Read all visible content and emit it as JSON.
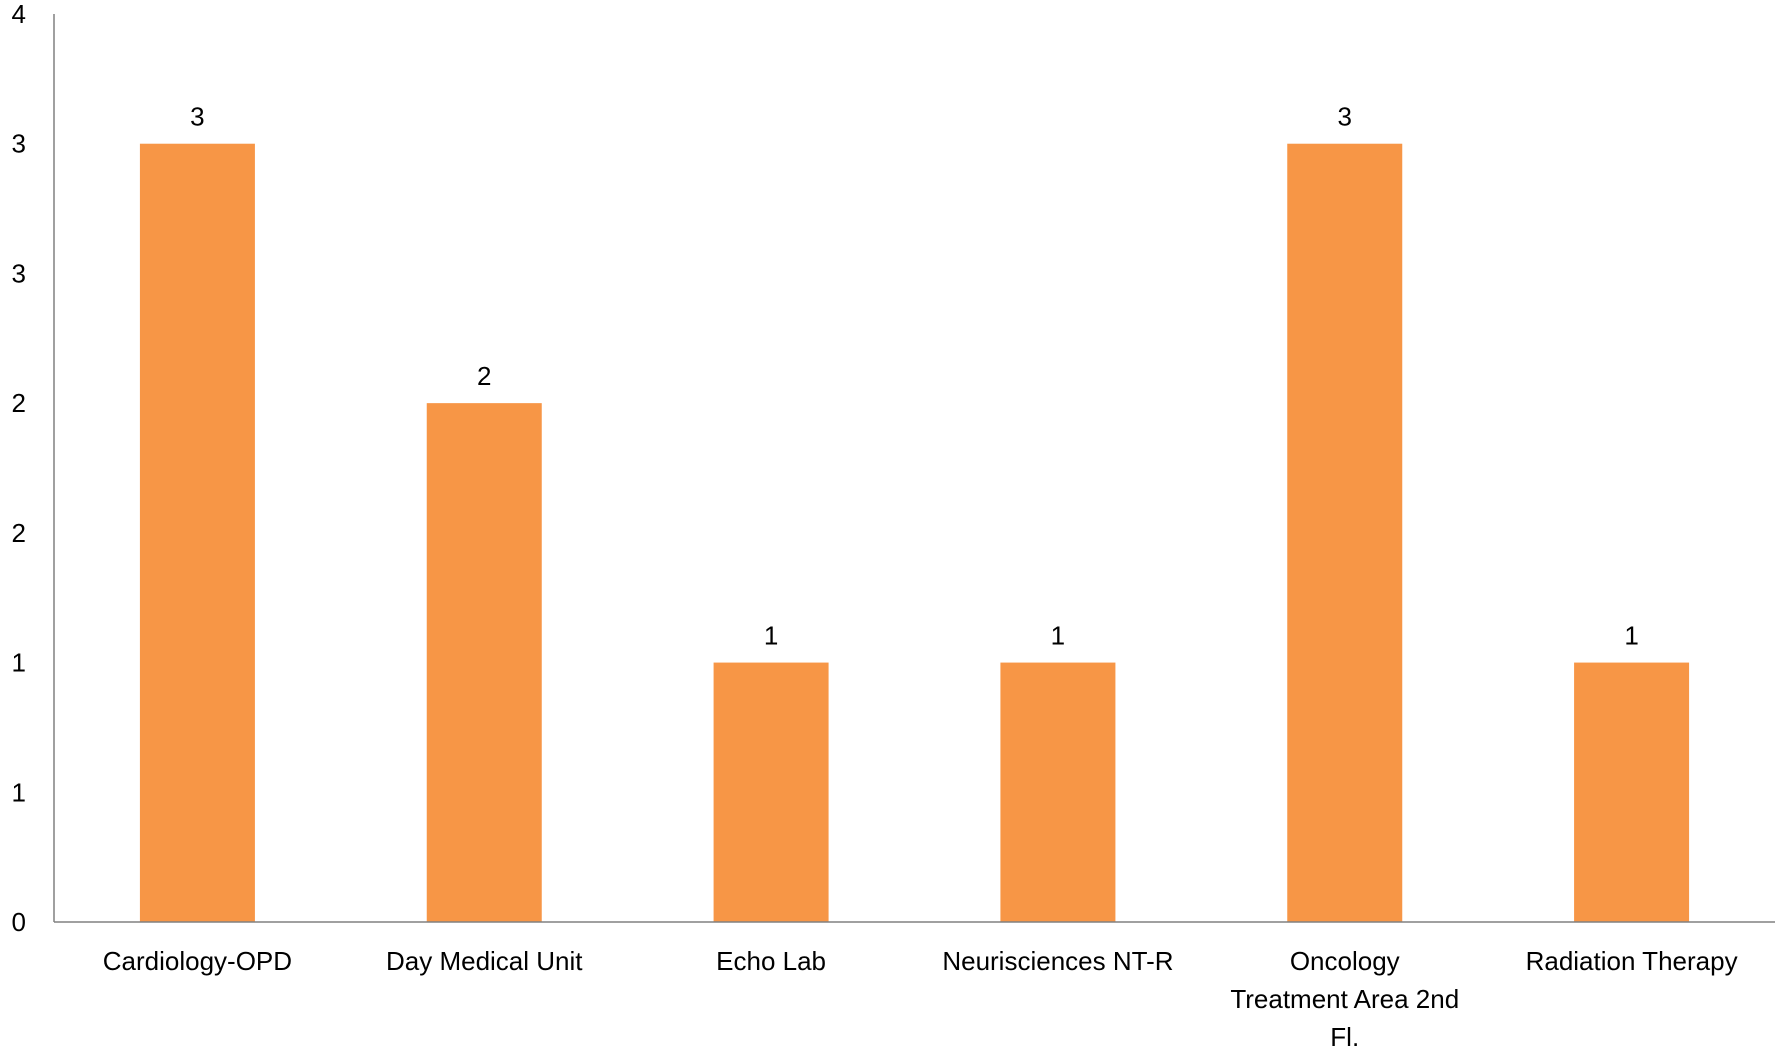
{
  "chart_data": {
    "type": "bar",
    "categories": [
      "Cardiology-OPD",
      "Day Medical Unit",
      "Echo Lab",
      "Neurisciences NT-R",
      "Oncology Treatment Area 2nd Fl.",
      "Radiation Therapy"
    ],
    "category_label_lines": [
      [
        "Cardiology-OPD"
      ],
      [
        "Day Medical Unit"
      ],
      [
        "Echo Lab"
      ],
      [
        "Neurisciences NT-R"
      ],
      [
        "Oncology",
        "Treatment Area 2nd",
        "Fl."
      ],
      [
        "Radiation Therapy"
      ]
    ],
    "values": [
      3,
      2,
      1,
      1,
      3,
      1
    ],
    "data_labels": [
      "3",
      "2",
      "1",
      "1",
      "3",
      "1"
    ],
    "y_tick_values": [
      0,
      0.5,
      1,
      1.5,
      2,
      2.5,
      3,
      3.5
    ],
    "y_tick_labels": [
      "0",
      "1",
      "1",
      "2",
      "2",
      "3",
      "3",
      "4"
    ],
    "ylim": [
      0,
      3.5
    ],
    "title": "",
    "xlabel": "",
    "ylabel": "",
    "grid": false,
    "legend": "none",
    "bar_color": "#F79646",
    "axis_color": "#808080"
  }
}
